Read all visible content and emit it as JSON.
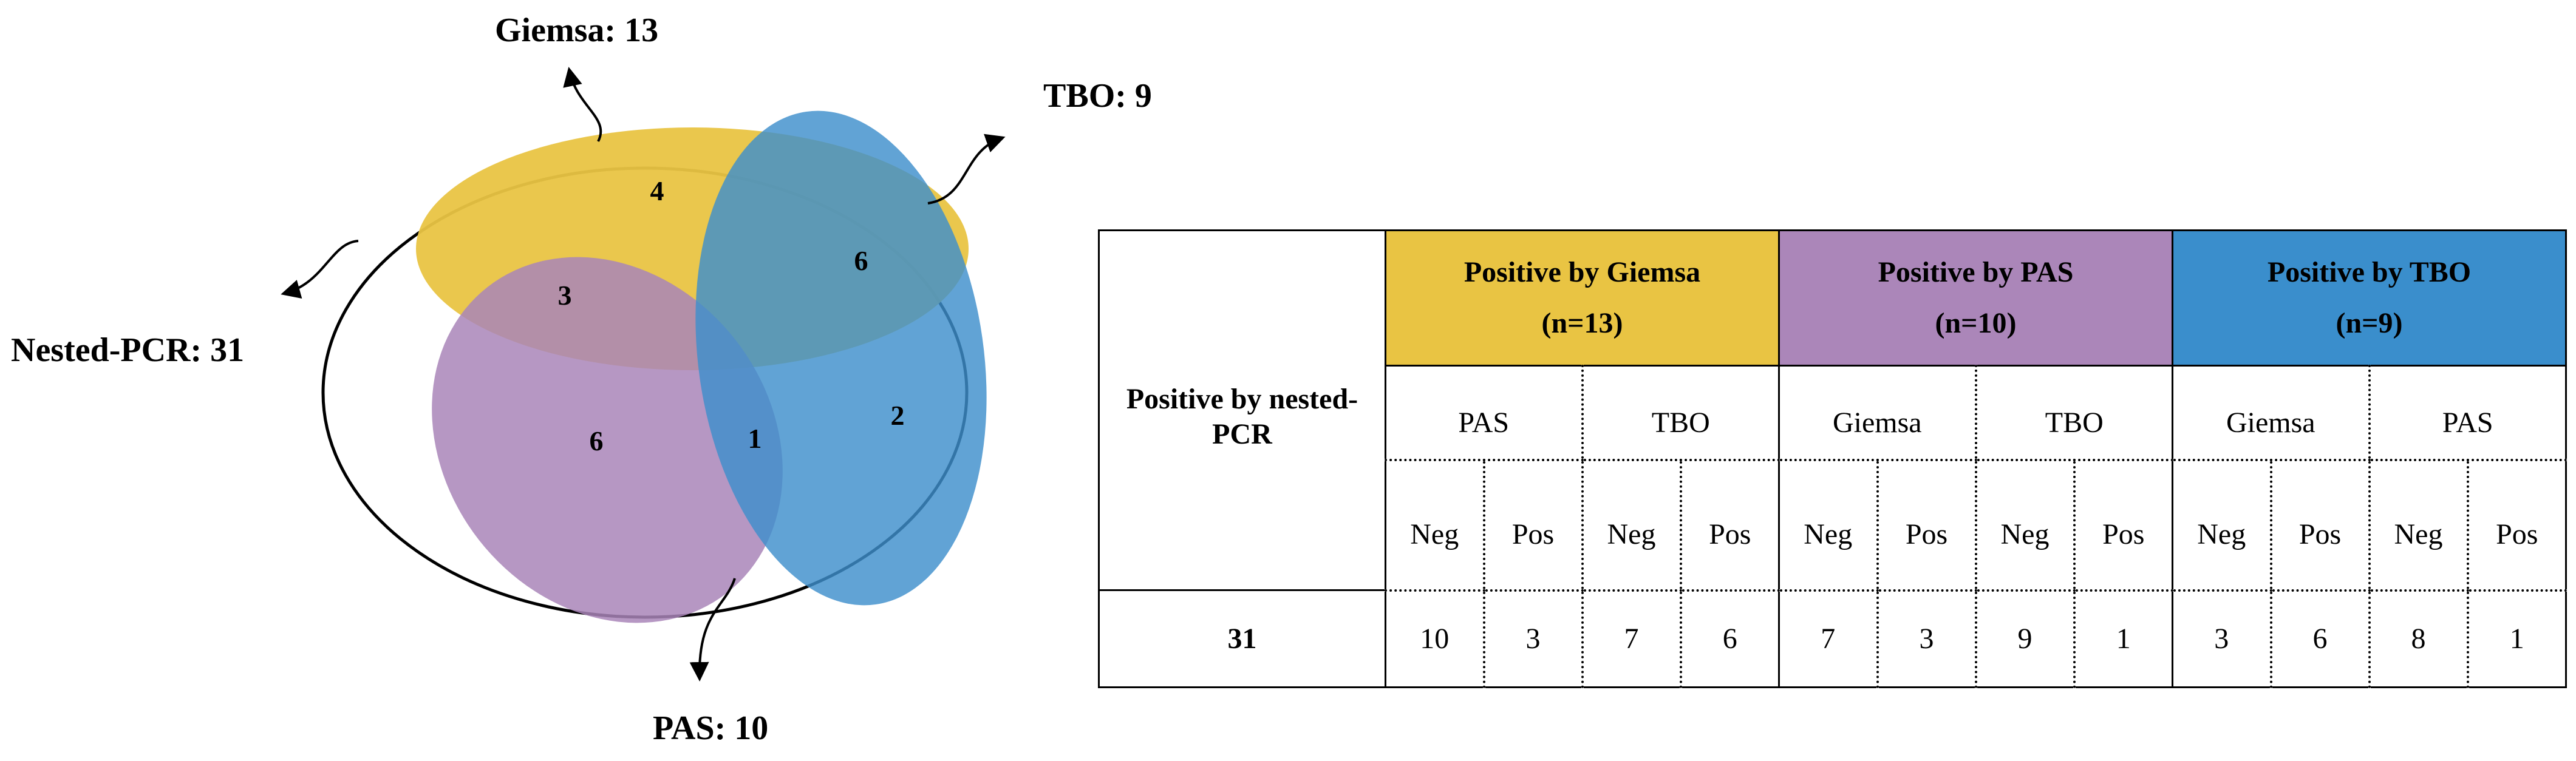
{
  "venn": {
    "labels": {
      "giemsa": "Giemsa: 13",
      "tbo": "TBO: 9",
      "nested_pcr": "Nested-PCR: 31",
      "pas": "PAS: 10"
    },
    "regions": {
      "giemsa_only": "4",
      "tbo_only": "2",
      "pas_only": "6",
      "giemsa_tbo": "6",
      "giemsa_pas": "3",
      "pas_tbo": "1"
    },
    "colors": {
      "giemsa": "#e9c443",
      "pas": "#a985b8",
      "tbo": "#3e8fcc"
    }
  },
  "table": {
    "pcr_header": "Positive by nested-PCR",
    "groups": [
      {
        "title": "Positive by Giemsa",
        "n": "(n=13)",
        "subs": [
          {
            "name": "PAS",
            "neg_label": "Neg",
            "pos_label": "Pos",
            "neg": "10",
            "pos": "3"
          },
          {
            "name": "TBO",
            "neg_label": "Neg",
            "pos_label": "Pos",
            "neg": "7",
            "pos": "6"
          }
        ]
      },
      {
        "title": "Positive by PAS",
        "n": "(n=10)",
        "subs": [
          {
            "name": "Giemsa",
            "neg_label": "Neg",
            "pos_label": "Pos",
            "neg": "7",
            "pos": "3"
          },
          {
            "name": "TBO",
            "neg_label": "Neg",
            "pos_label": "Pos",
            "neg": "9",
            "pos": "1"
          }
        ]
      },
      {
        "title": "Positive by TBO",
        "n": "(n=9)",
        "subs": [
          {
            "name": "Giemsa",
            "neg_label": "Neg",
            "pos_label": "Pos",
            "neg": "3",
            "pos": "6"
          },
          {
            "name": "PAS",
            "neg_label": "Neg",
            "pos_label": "Pos",
            "neg": "8",
            "pos": "1"
          }
        ]
      }
    ],
    "pcr_value": "31"
  }
}
